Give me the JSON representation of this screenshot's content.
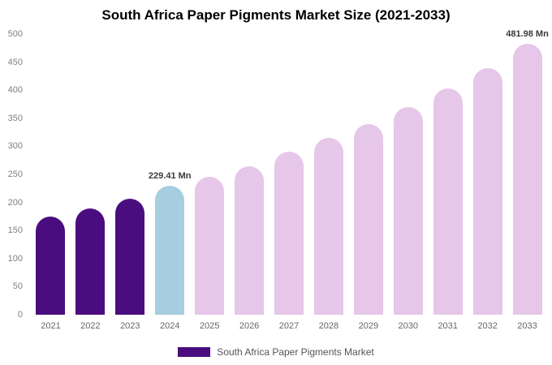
{
  "title": "South Africa Paper Pigments Market Size (2021-2033)",
  "legend": {
    "label": "South Africa Paper Pigments Market",
    "swatch_color": "#4a0d7f"
  },
  "colors": {
    "historical": "#4a0d7f",
    "current_year": "#a6cde0",
    "forecast": "#e6c6e9"
  },
  "chart_data": {
    "type": "bar",
    "title": "South Africa Paper Pigments Market Size (2021-2033)",
    "categories": [
      "2021",
      "2022",
      "2023",
      "2024",
      "2025",
      "2026",
      "2027",
      "2028",
      "2029",
      "2030",
      "2031",
      "2032",
      "2033"
    ],
    "values": [
      175,
      190,
      207,
      229.41,
      245,
      265,
      290,
      315,
      340,
      370,
      403,
      440,
      481.98
    ],
    "bar_colors": [
      "#4a0d7f",
      "#4a0d7f",
      "#4a0d7f",
      "#a6cde0",
      "#e6c6e9",
      "#e6c6e9",
      "#e6c6e9",
      "#e6c6e9",
      "#e6c6e9",
      "#e6c6e9",
      "#e6c6e9",
      "#e6c6e9",
      "#e6c6e9"
    ],
    "annotations": [
      {
        "index": 3,
        "text": "229.41 Mn"
      },
      {
        "index": 12,
        "text": "481.98 Mn"
      }
    ],
    "xlabel": "",
    "ylabel": "",
    "ylim": [
      0,
      500
    ],
    "yticks": [
      0,
      50,
      100,
      150,
      200,
      250,
      300,
      350,
      400,
      450,
      500
    ],
    "grid": false,
    "legend_position": "bottom",
    "unit": "Mn"
  }
}
